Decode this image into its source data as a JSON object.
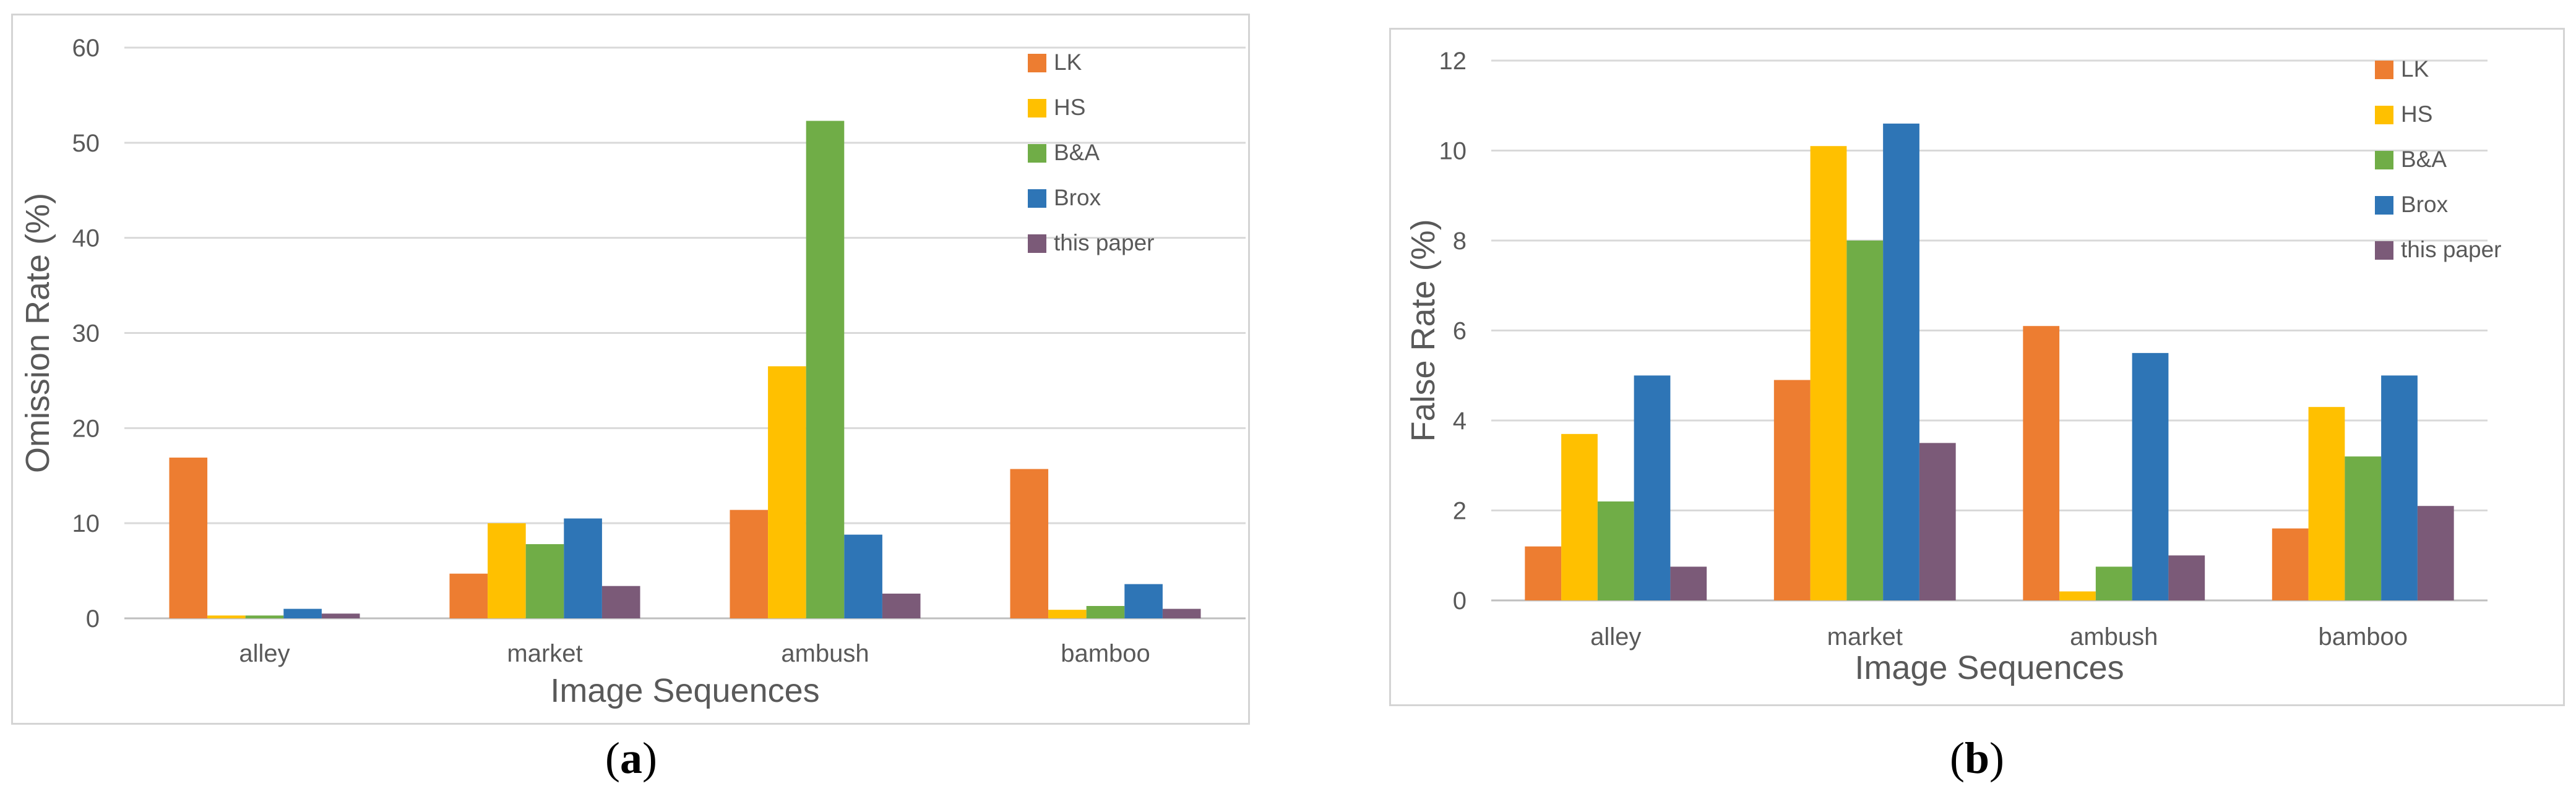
{
  "colors": {
    "LK": "#ED7D31",
    "HS": "#FFC000",
    "B&A": "#70AD47",
    "Brox": "#2E75B6",
    "this paper": "#7B5A78",
    "grid": "#d9d9d9",
    "axis": "#bfbfbf"
  },
  "chart_data": [
    {
      "type": "bar",
      "panel_label": "a",
      "categories": [
        "alley",
        "market",
        "ambush",
        "bamboo"
      ],
      "series": [
        {
          "name": "LK",
          "values": [
            16.9,
            4.7,
            11.4,
            15.7
          ]
        },
        {
          "name": "HS",
          "values": [
            0.3,
            10.0,
            26.5,
            0.9
          ]
        },
        {
          "name": "B&A",
          "values": [
            0.3,
            7.8,
            52.3,
            1.3
          ]
        },
        {
          "name": "Brox",
          "values": [
            1.0,
            10.5,
            8.8,
            3.6
          ]
        },
        {
          "name": "this paper",
          "values": [
            0.5,
            3.4,
            2.6,
            1.0
          ]
        }
      ],
      "xlabel": "Image Sequences",
      "ylabel": "Omission Rate (%)",
      "ylim": [
        0,
        60
      ],
      "yticks": [
        0,
        10,
        20,
        30,
        40,
        50,
        60
      ],
      "grid": true,
      "legend_position": "top-right"
    },
    {
      "type": "bar",
      "panel_label": "b",
      "categories": [
        "alley",
        "market",
        "ambush",
        "bamboo"
      ],
      "series": [
        {
          "name": "LK",
          "values": [
            1.2,
            4.9,
            6.1,
            1.6
          ]
        },
        {
          "name": "HS",
          "values": [
            3.7,
            10.1,
            0.2,
            4.3
          ]
        },
        {
          "name": "B&A",
          "values": [
            2.2,
            8.0,
            0.75,
            3.2
          ]
        },
        {
          "name": "Brox",
          "values": [
            5.0,
            10.6,
            5.5,
            5.0
          ]
        },
        {
          "name": "this paper",
          "values": [
            0.75,
            3.5,
            1.0,
            2.1
          ]
        }
      ],
      "xlabel": "Image Sequences",
      "ylabel": "False Rate (%)",
      "ylim": [
        0,
        12
      ],
      "yticks": [
        0,
        2,
        4,
        6,
        8,
        10,
        12
      ],
      "grid": true,
      "legend_position": "top-right"
    }
  ]
}
